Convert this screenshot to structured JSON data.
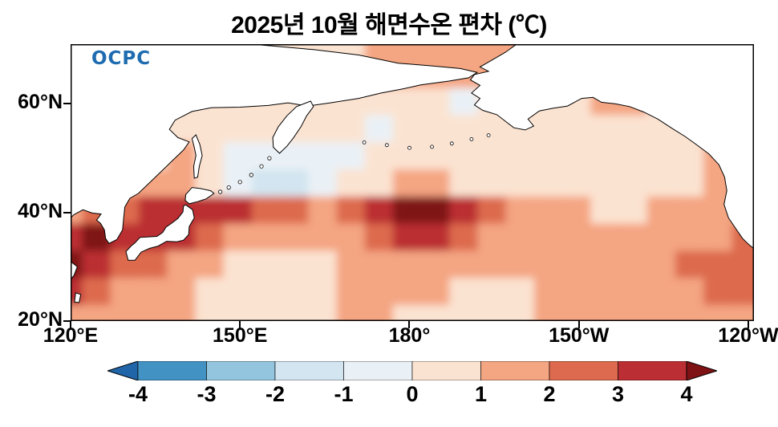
{
  "figure": {
    "title": "2025년 10월 해면수온 편차 (℃)",
    "logo": "OCPC"
  },
  "chart_data": {
    "type": "heatmap",
    "title": "2025년 10월 해면수온 편차 (℃)",
    "subtitle": "",
    "units": "°C",
    "legend_position": "bottom",
    "grid": false,
    "lon_ticks": [
      "120°E",
      "150°E",
      "180°",
      "150°W",
      "120°W"
    ],
    "lon_tick_values": [
      120,
      150,
      180,
      210,
      240
    ],
    "lat_ticks": [
      "60°N",
      "40°N",
      "20°N"
    ],
    "lat_tick_values": [
      60,
      40,
      20
    ],
    "lon_range": [
      120,
      241
    ],
    "lat_range": [
      20,
      71
    ],
    "lons": [
      120,
      125,
      130,
      135,
      140,
      145,
      150,
      155,
      160,
      165,
      170,
      175,
      180,
      185,
      190,
      195,
      200,
      205,
      210,
      215,
      220,
      225,
      230,
      235,
      240
    ],
    "lats": [
      70,
      65,
      60,
      55,
      50,
      45,
      40,
      35,
      30,
      25,
      20
    ],
    "anomaly_grid": [
      [
        0.8,
        0.8,
        0.8,
        0.8,
        0.8,
        0.8,
        0.8,
        0.8,
        0.8,
        0.8,
        0.8,
        1.0,
        1.0,
        1.2,
        1.2,
        1.0,
        1.0,
        1.0,
        1.0,
        1.0,
        1.0,
        0.8,
        0.8,
        0.8,
        0.8
      ],
      [
        0.8,
        0.8,
        0.8,
        0.8,
        0.8,
        0.8,
        0.8,
        0.8,
        0.8,
        0.8,
        1.0,
        1.2,
        1.5,
        1.5,
        1.2,
        1.0,
        1.0,
        1.2,
        1.2,
        1.0,
        1.0,
        0.8,
        0.8,
        0.8,
        0.8
      ],
      [
        0.8,
        0.8,
        0.8,
        0.8,
        0.6,
        0.6,
        0.8,
        0.8,
        0.6,
        0.5,
        0.5,
        0.8,
        0.6,
        0.3,
        -0.3,
        0.5,
        0.8,
        0.8,
        0.8,
        1.0,
        1.0,
        0.8,
        0.8,
        0.8,
        0.8
      ],
      [
        0.8,
        0.8,
        0.8,
        0.6,
        0.5,
        0.6,
        0.8,
        0.5,
        0.3,
        0.5,
        0.5,
        -0.3,
        0.3,
        0.5,
        0.3,
        0.6,
        0.8,
        0.8,
        0.6,
        0.5,
        0.8,
        0.8,
        0.8,
        0.8,
        0.8
      ],
      [
        0.8,
        0.8,
        0.8,
        0.8,
        1.0,
        0.8,
        -0.5,
        -0.8,
        -0.5,
        -0.5,
        -0.3,
        0.3,
        0.5,
        0.5,
        0.5,
        0.8,
        0.8,
        0.6,
        0.5,
        0.3,
        0.3,
        0.6,
        0.8,
        1.0,
        1.0
      ],
      [
        1.0,
        1.2,
        1.8,
        1.5,
        1.2,
        0.8,
        -0.5,
        -1.2,
        -1.2,
        -0.5,
        0.3,
        0.8,
        1.2,
        1.0,
        0.8,
        0.8,
        0.6,
        0.5,
        0.5,
        0.3,
        0.5,
        0.8,
        0.8,
        1.0,
        1.0
      ],
      [
        1.5,
        2.0,
        2.5,
        3.2,
        3.6,
        3.8,
        3.2,
        2.5,
        2.2,
        1.8,
        2.2,
        3.2,
        4.2,
        4.0,
        3.5,
        2.5,
        1.5,
        1.2,
        1.0,
        0.8,
        0.8,
        1.0,
        1.0,
        1.2,
        1.2
      ],
      [
        3.5,
        4.2,
        3.8,
        3.0,
        3.2,
        2.2,
        1.8,
        1.5,
        1.2,
        1.0,
        1.2,
        2.0,
        3.0,
        3.2,
        2.2,
        1.5,
        1.2,
        1.0,
        1.0,
        1.2,
        1.5,
        1.8,
        1.8,
        1.8,
        2.0
      ],
      [
        4.2,
        3.8,
        2.8,
        2.2,
        1.8,
        1.2,
        0.8,
        0.6,
        0.5,
        0.8,
        1.2,
        1.5,
        1.5,
        1.5,
        1.2,
        1.2,
        1.0,
        1.0,
        1.2,
        1.2,
        1.5,
        1.8,
        2.2,
        2.5,
        2.5
      ],
      [
        3.0,
        2.5,
        1.8,
        1.5,
        1.2,
        0.8,
        0.6,
        0.6,
        0.6,
        0.8,
        1.0,
        1.2,
        1.2,
        1.0,
        0.8,
        0.8,
        0.8,
        1.0,
        1.0,
        1.2,
        1.5,
        1.8,
        1.8,
        2.0,
        2.0
      ],
      [
        1.5,
        1.5,
        1.2,
        1.2,
        1.0,
        0.8,
        0.6,
        0.8,
        0.8,
        0.8,
        1.0,
        1.0,
        0.8,
        0.8,
        0.6,
        0.8,
        0.8,
        1.0,
        1.0,
        1.2,
        1.2,
        1.5,
        1.5,
        1.5,
        1.5
      ]
    ],
    "levels": [
      -4,
      -3,
      -2,
      -1,
      0,
      1,
      2,
      3,
      4
    ],
    "colors": [
      "#1f65a8",
      "#4292c3",
      "#93c6de",
      "#d2e5f0",
      "#eaf1f6",
      "#fbe3d1",
      "#f4a582",
      "#dd6a4e",
      "#bb2e33",
      "#7f1215"
    ],
    "colorbar_tick_labels": [
      "-4",
      "-3",
      "-2",
      "-1",
      "0",
      "1",
      "2",
      "3",
      "4"
    ],
    "land_color": "#ffffff",
    "coastline_color": "#000000"
  }
}
